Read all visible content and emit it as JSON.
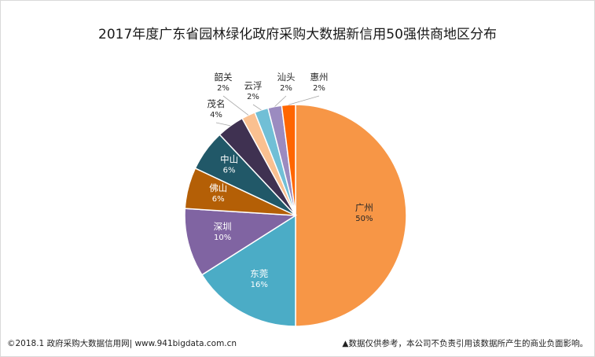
{
  "chart_data": {
    "type": "pie",
    "title": "2017年度广东省园林绿化政府采购大数据新信用50强供商地区分布",
    "slices": [
      {
        "label": "广州",
        "value": 50,
        "pct_label": "50%",
        "color": "#f79646"
      },
      {
        "label": "东莞",
        "value": 16,
        "pct_label": "16%",
        "color": "#4bacc6"
      },
      {
        "label": "深圳",
        "value": 10,
        "pct_label": "10%",
        "color": "#8064a2"
      },
      {
        "label": "佛山",
        "value": 6,
        "pct_label": "6%",
        "color": "#b45f06"
      },
      {
        "label": "中山",
        "value": 6,
        "pct_label": "6%",
        "color": "#215868"
      },
      {
        "label": "茂名",
        "value": 4,
        "pct_label": "4%",
        "color": "#3f3151"
      },
      {
        "label": "韶关",
        "value": 2,
        "pct_label": "2%",
        "color": "#fac090"
      },
      {
        "label": "云浮",
        "value": 2,
        "pct_label": "2%",
        "color": "#71bfd6"
      },
      {
        "label": "汕头",
        "value": 2,
        "pct_label": "2%",
        "color": "#9b8bc0"
      },
      {
        "label": "惠州",
        "value": 2,
        "pct_label": "2%",
        "color": "#ff6600"
      }
    ]
  },
  "footer": {
    "left": "©2018.1 政府采购大数据信用网| www.941bigdata.com.cn",
    "right": "▲数据仅供参考，本公司不负责引用该数据所产生的商业负面影响。"
  }
}
